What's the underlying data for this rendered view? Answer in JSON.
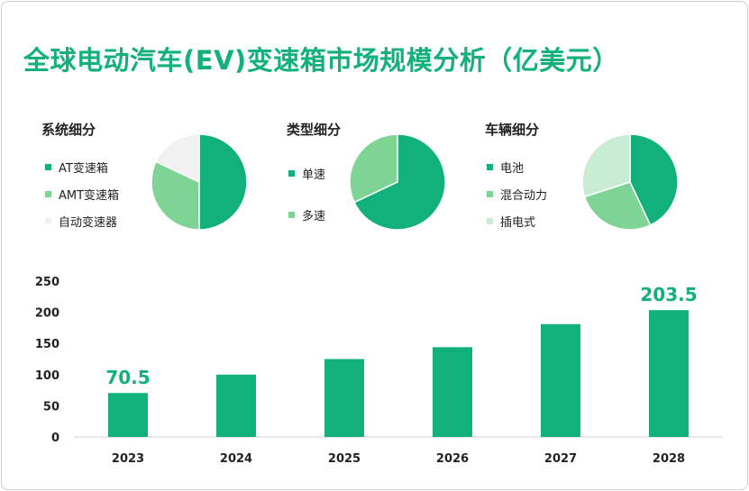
{
  "title": "全球电动汽车(EV)变速箱市场规模分析（亿美元）",
  "colors": {
    "primary": "#12b07a",
    "secondary": "#7ed495",
    "tertiary": "#f0f0f0",
    "light_green": "#c8ecd3"
  },
  "chart_data": [
    {
      "type": "pie",
      "title": "系统细分",
      "labels": [
        "AT变速箱",
        "AMT变速箱",
        "自动变速器"
      ],
      "values": [
        50,
        32,
        18
      ],
      "colors": [
        "#12b07a",
        "#7ed495",
        "#f0f0f0"
      ]
    },
    {
      "type": "pie",
      "title": "类型细分",
      "labels": [
        "单速",
        "多速"
      ],
      "values": [
        68,
        32
      ],
      "colors": [
        "#12b07a",
        "#7ed495"
      ]
    },
    {
      "type": "pie",
      "title": "车辆细分",
      "labels": [
        "电池",
        "混合动力",
        "插电式"
      ],
      "values": [
        43,
        27,
        30
      ],
      "colors": [
        "#12b07a",
        "#7ed495",
        "#c8ecd3"
      ]
    },
    {
      "type": "bar",
      "categories": [
        "2023",
        "2024",
        "2025",
        "2026",
        "2027",
        "2028"
      ],
      "values": [
        70.5,
        100,
        125,
        144,
        181,
        203.5
      ],
      "data_labels": {
        "2023": "70.5",
        "2028": "203.5"
      },
      "ylim": [
        0,
        250
      ],
      "yticks": [
        "0",
        "50",
        "100",
        "150",
        "200",
        "250"
      ],
      "grid": false,
      "color": "#12b07a"
    }
  ]
}
